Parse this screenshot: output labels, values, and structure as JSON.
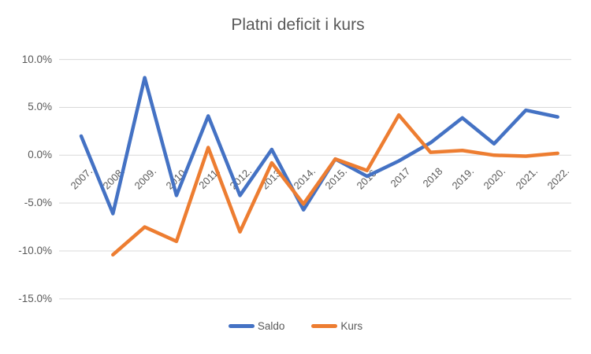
{
  "chart_data": {
    "type": "line",
    "title": "Platni deficit i kurs",
    "categories": [
      "2007.",
      "2008.",
      "2009.",
      "2010.",
      "2011.",
      "2012.",
      "2013.",
      "2014.",
      "2015.",
      "2016.",
      "2017",
      "2018",
      "2019.",
      "2020.",
      "2021.",
      "2022."
    ],
    "series": [
      {
        "name": "Saldo",
        "color": "#4472C4",
        "values": [
          2.0,
          -6.1,
          8.1,
          -4.2,
          4.1,
          -4.2,
          0.6,
          -5.7,
          -0.4,
          -2.2,
          -0.6,
          1.3,
          3.9,
          1.2,
          4.7,
          4.0
        ]
      },
      {
        "name": "Kurs",
        "color": "#ED7D31",
        "values": [
          null,
          -10.4,
          -7.5,
          -9.0,
          0.8,
          -8.0,
          -0.8,
          -5.1,
          -0.4,
          -1.6,
          4.2,
          0.3,
          0.5,
          0.0,
          -0.1,
          0.2
        ]
      }
    ],
    "xlabel": "",
    "ylabel": "",
    "ylim": [
      -15,
      10
    ],
    "ytick_labels": [
      "10.0%",
      "5.0%",
      "0.0%",
      "-5.0%",
      "-10.0%",
      "-15.0%"
    ],
    "ytick_values": [
      10,
      5,
      0,
      -5,
      -10,
      -15
    ],
    "grid": true,
    "legend_position": "bottom",
    "gridline_color": "#D9D9D9",
    "text_color": "#595959"
  }
}
